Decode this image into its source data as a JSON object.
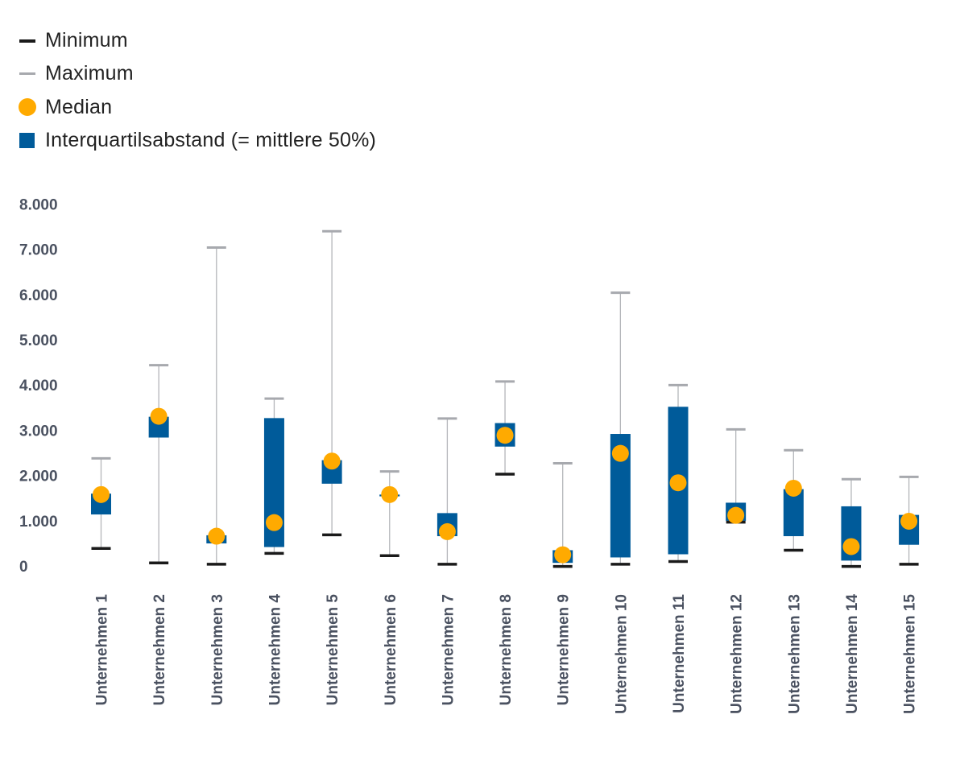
{
  "legend": {
    "minimum": "Minimum",
    "maximum": "Maximum",
    "median": "Median",
    "iqr": "Interquartilsabstand (= mittlere 50%)"
  },
  "colors": {
    "minimum": "#1a1a1a",
    "maximum": "#a7a9ae",
    "median": "#ffaa00",
    "iqr": "#005b9a",
    "whisker": "#b4b6ba",
    "axis_text": "#4a5160"
  },
  "chart_data": {
    "type": "box",
    "title": "",
    "xlabel": "",
    "ylabel": "",
    "ylim": [
      0,
      8000
    ],
    "y_ticks": [
      0,
      1000,
      2000,
      3000,
      4000,
      5000,
      6000,
      7000,
      8000
    ],
    "y_tick_labels": [
      "0",
      "1.000",
      "2.000",
      "3.000",
      "4.000",
      "5.000",
      "6.000",
      "7.000",
      "8.000"
    ],
    "grid": false,
    "legend_position": "top-left",
    "categories": [
      "Unternehmen 1",
      "Unternehmen 2",
      "Unternehmen 3",
      "Unternehmen 4",
      "Unternehmen 5",
      "Unternehmen 6",
      "Unternehmen 7",
      "Unternehmen 8",
      "Unternehmen 9",
      "Unternehmen 10",
      "Unternehmen 11",
      "Unternehmen 12",
      "Unternehmen 13",
      "Unternehmen 14",
      "Unternehmen 15"
    ],
    "series": [
      {
        "name": "Minimum",
        "values": [
          370,
          50,
          20,
          260,
          670,
          210,
          20,
          2010,
          -30,
          20,
          80,
          950,
          330,
          -30,
          20
        ]
      },
      {
        "name": "Maximum",
        "values": [
          2360,
          4420,
          7020,
          3680,
          7380,
          2070,
          3240,
          4060,
          2250,
          6020,
          3980,
          3000,
          2540,
          1900,
          1950
        ]
      },
      {
        "name": "Median",
        "values": [
          1560,
          3290,
          640,
          940,
          2300,
          1560,
          740,
          2870,
          230,
          2470,
          1820,
          1100,
          1700,
          410,
          970
        ]
      },
      {
        "name": "Interquartilsabstand (= mittlere 50%)",
        "low": [
          1120,
          2820,
          480,
          400,
          1800,
          1520,
          640,
          2620,
          50,
          170,
          240,
          980,
          640,
          100,
          450
        ],
        "high": [
          1580,
          3280,
          660,
          3250,
          2320,
          1560,
          1150,
          3140,
          330,
          2900,
          3500,
          1380,
          1680,
          1300,
          1110
        ]
      }
    ]
  }
}
